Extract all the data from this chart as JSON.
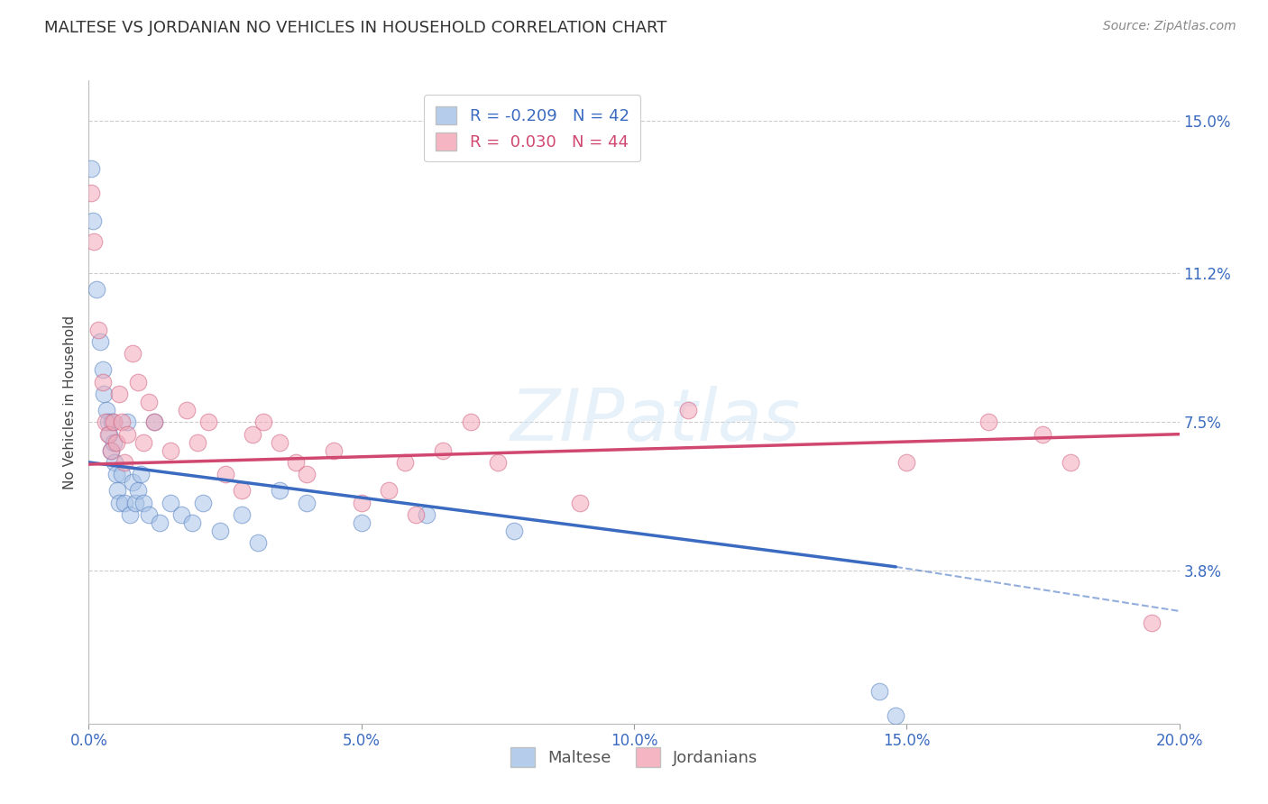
{
  "title": "MALTESE VS JORDANIAN NO VEHICLES IN HOUSEHOLD CORRELATION CHART",
  "source": "Source: ZipAtlas.com",
  "ylabel_label": "No Vehicles in Household",
  "xlim": [
    0.0,
    20.0
  ],
  "ylim": [
    0.0,
    16.0
  ],
  "xticks": [
    0.0,
    5.0,
    10.0,
    15.0,
    20.0
  ],
  "yticks": [
    0.0,
    3.8,
    7.5,
    11.2,
    15.0
  ],
  "ytick_labels": [
    "",
    "3.8%",
    "7.5%",
    "11.2%",
    "15.0%"
  ],
  "xtick_labels": [
    "0.0%",
    "5.0%",
    "10.0%",
    "15.0%",
    "20.0%"
  ],
  "maltese_R": -0.209,
  "maltese_N": 42,
  "jordanian_R": 0.03,
  "jordanian_N": 44,
  "blue_fill": "#A8C4E8",
  "pink_fill": "#F4A8B8",
  "blue_edge": "#5580C0",
  "pink_edge": "#D06080",
  "blue_line": "#3B6BC0",
  "pink_line": "#D04870",
  "maltese_x": [
    0.05,
    0.07,
    0.15,
    0.2,
    0.25,
    0.28,
    0.32,
    0.35,
    0.38,
    0.4,
    0.42,
    0.45,
    0.48,
    0.5,
    0.52,
    0.55,
    0.6,
    0.65,
    0.7,
    0.75,
    0.8,
    0.85,
    0.9,
    0.95,
    1.0,
    1.1,
    1.2,
    1.3,
    1.5,
    1.7,
    1.9,
    2.1,
    2.4,
    2.8,
    3.1,
    3.5,
    4.0,
    5.0,
    6.2,
    7.8,
    14.5,
    14.8
  ],
  "maltese_y": [
    13.8,
    12.5,
    10.8,
    9.5,
    8.8,
    8.2,
    7.8,
    7.5,
    7.2,
    6.8,
    7.5,
    7.0,
    6.5,
    6.2,
    5.8,
    5.5,
    6.2,
    5.5,
    7.5,
    5.2,
    6.0,
    5.5,
    5.8,
    6.2,
    5.5,
    5.2,
    7.5,
    5.0,
    5.5,
    5.2,
    5.0,
    5.5,
    4.8,
    5.2,
    4.5,
    5.8,
    5.5,
    5.0,
    5.2,
    4.8,
    0.8,
    0.2
  ],
  "jordanian_x": [
    0.05,
    0.1,
    0.18,
    0.25,
    0.3,
    0.35,
    0.4,
    0.45,
    0.5,
    0.55,
    0.6,
    0.65,
    0.7,
    0.8,
    0.9,
    1.0,
    1.1,
    1.2,
    1.5,
    1.8,
    2.0,
    2.2,
    2.5,
    2.8,
    3.0,
    3.2,
    3.5,
    3.8,
    4.0,
    4.5,
    5.0,
    5.5,
    5.8,
    6.0,
    6.5,
    7.0,
    7.5,
    9.0,
    11.0,
    15.0,
    16.5,
    17.5,
    18.0,
    19.5
  ],
  "jordanian_y": [
    13.2,
    12.0,
    9.8,
    8.5,
    7.5,
    7.2,
    6.8,
    7.5,
    7.0,
    8.2,
    7.5,
    6.5,
    7.2,
    9.2,
    8.5,
    7.0,
    8.0,
    7.5,
    6.8,
    7.8,
    7.0,
    7.5,
    6.2,
    5.8,
    7.2,
    7.5,
    7.0,
    6.5,
    6.2,
    6.8,
    5.5,
    5.8,
    6.5,
    5.2,
    6.8,
    7.5,
    6.5,
    5.5,
    7.8,
    6.5,
    7.5,
    7.2,
    6.5,
    2.5
  ],
  "blue_line_start_x": 0.0,
  "blue_line_start_y": 6.5,
  "blue_line_end_x": 14.8,
  "blue_line_end_y": 3.9,
  "blue_dash_end_x": 20.0,
  "blue_dash_end_y": 2.8,
  "pink_line_start_x": 0.0,
  "pink_line_start_y": 6.45,
  "pink_line_end_x": 20.0,
  "pink_line_end_y": 7.2
}
